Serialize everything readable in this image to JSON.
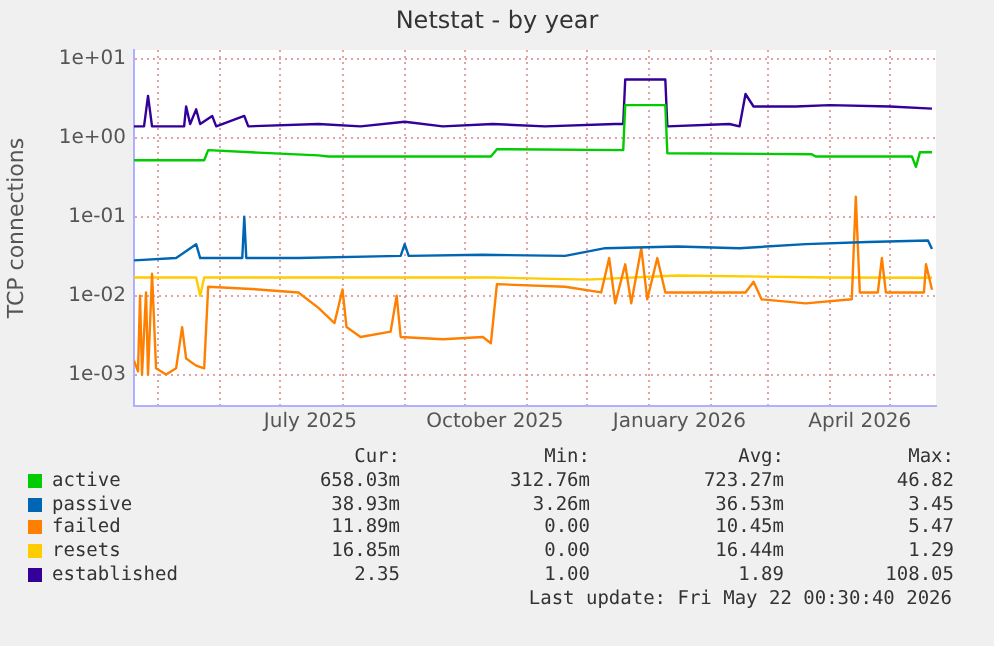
{
  "chart_data": {
    "type": "line",
    "title": "Netstat - by year",
    "ylabel": "TCP connections",
    "log": "y",
    "grid": true,
    "legend": "bottom",
    "marker": "none",
    "xlim": [
      "2025-04-19",
      "2026-05-24"
    ],
    "xticks": [
      {
        "value": "2025-05-01",
        "label": null
      },
      {
        "value": "2025-06-01",
        "label": null
      },
      {
        "value": "2025-07-01",
        "label": null
      },
      {
        "value": "2025-07-16",
        "label": "July 2025"
      },
      {
        "value": "2025-08-01",
        "label": null
      },
      {
        "value": "2025-09-01",
        "label": null
      },
      {
        "value": "2025-10-01",
        "label": null
      },
      {
        "value": "2025-10-16",
        "label": "October 2025"
      },
      {
        "value": "2025-11-01",
        "label": null
      },
      {
        "value": "2025-12-01",
        "label": null
      },
      {
        "value": "2026-01-01",
        "label": null
      },
      {
        "value": "2026-01-16",
        "label": "January 2026"
      },
      {
        "value": "2026-02-01",
        "label": null
      },
      {
        "value": "2026-03-01",
        "label": null
      },
      {
        "value": "2026-04-01",
        "label": null
      },
      {
        "value": "2026-04-16",
        "label": "April 2026"
      },
      {
        "value": "2026-05-01",
        "label": null
      }
    ],
    "ylim": [
      0.0004,
      13
    ],
    "yticks": [
      {
        "value": 0.001,
        "label": "1e-03"
      },
      {
        "value": 0.01,
        "label": "1e-02"
      },
      {
        "value": 0.1,
        "label": "1e-01"
      },
      {
        "value": 1,
        "label": "1e+00"
      },
      {
        "value": 10,
        "label": "1e+01"
      }
    ],
    "series": [
      {
        "name": "active",
        "color": "#00cc00",
        "x": [
          "2025-04-19",
          "2025-05-24",
          "2025-05-26",
          "2025-06-20",
          "2025-07-20",
          "2025-07-25",
          "2025-10-14",
          "2025-10-17",
          "2025-12-19",
          "2025-12-20",
          "2026-01-09",
          "2026-01-10",
          "2026-03-23",
          "2026-03-25",
          "2026-05-12",
          "2026-05-14",
          "2026-05-16",
          "2026-05-22"
        ],
        "values": [
          0.52,
          0.52,
          0.7,
          0.65,
          0.6,
          0.58,
          0.58,
          0.72,
          0.7,
          2.6,
          2.6,
          0.64,
          0.62,
          0.58,
          0.58,
          0.43,
          0.66,
          0.658
        ]
      },
      {
        "name": "passive",
        "color": "#0066b3",
        "x": [
          "2025-04-19",
          "2025-05-10",
          "2025-05-20",
          "2025-05-22",
          "2025-06-12",
          "2025-06-13",
          "2025-06-14",
          "2025-07-10",
          "2025-08-30",
          "2025-09-01",
          "2025-09-03",
          "2025-10-10",
          "2025-11-20",
          "2025-12-10",
          "2026-01-15",
          "2026-02-15",
          "2026-03-20",
          "2026-04-20",
          "2026-05-20",
          "2026-05-22"
        ],
        "values": [
          0.028,
          0.03,
          0.045,
          0.03,
          0.03,
          0.1,
          0.03,
          0.03,
          0.032,
          0.045,
          0.032,
          0.033,
          0.032,
          0.04,
          0.042,
          0.04,
          0.045,
          0.048,
          0.05,
          0.039
        ]
      },
      {
        "name": "failed",
        "color": "#ff8000",
        "x": [
          "2025-04-19",
          "2025-04-21",
          "2025-04-22",
          "2025-04-23",
          "2025-04-25",
          "2025-04-26",
          "2025-04-28",
          "2025-04-30",
          "2025-05-05",
          "2025-05-10",
          "2025-05-13",
          "2025-05-15",
          "2025-05-20",
          "2025-05-24",
          "2025-05-26",
          "2025-06-20",
          "2025-07-10",
          "2025-07-20",
          "2025-07-28",
          "2025-08-01",
          "2025-08-03",
          "2025-08-10",
          "2025-08-25",
          "2025-08-28",
          "2025-08-30",
          "2025-09-20",
          "2025-10-10",
          "2025-10-14",
          "2025-10-17",
          "2025-11-20",
          "2025-12-08",
          "2025-12-12",
          "2025-12-15",
          "2025-12-20",
          "2025-12-23",
          "2025-12-28",
          "2025-12-31",
          "2026-01-05",
          "2026-01-09",
          "2026-02-10",
          "2026-02-18",
          "2026-02-22",
          "2026-02-26",
          "2026-03-20",
          "2026-04-12",
          "2026-04-14",
          "2026-04-16",
          "2026-04-25",
          "2026-04-27",
          "2026-04-29",
          "2026-05-18",
          "2026-05-19",
          "2026-05-22"
        ],
        "values": [
          0.0015,
          0.0011,
          0.01,
          0.001,
          0.011,
          0.001,
          0.019,
          0.0012,
          0.001,
          0.0012,
          0.004,
          0.0016,
          0.0013,
          0.0012,
          0.013,
          0.012,
          0.011,
          0.007,
          0.0045,
          0.012,
          0.004,
          0.003,
          0.0035,
          0.01,
          0.003,
          0.0028,
          0.003,
          0.0025,
          0.014,
          0.013,
          0.011,
          0.03,
          0.008,
          0.025,
          0.008,
          0.04,
          0.009,
          0.03,
          0.011,
          0.011,
          0.011,
          0.015,
          0.009,
          0.008,
          0.009,
          0.18,
          0.011,
          0.011,
          0.03,
          0.011,
          0.011,
          0.025,
          0.0119
        ]
      },
      {
        "name": "resets",
        "color": "#ffcc00",
        "x": [
          "2025-04-19",
          "2025-05-20",
          "2025-05-22",
          "2025-05-24",
          "2025-10-15",
          "2025-12-01",
          "2026-01-15",
          "2026-04-01",
          "2026-05-22"
        ],
        "values": [
          0.017,
          0.017,
          0.01,
          0.017,
          0.017,
          0.016,
          0.018,
          0.017,
          0.01685
        ]
      },
      {
        "name": "established",
        "color": "#330099",
        "x": [
          "2025-04-19",
          "2025-04-24",
          "2025-04-26",
          "2025-04-28",
          "2025-05-14",
          "2025-05-15",
          "2025-05-17",
          "2025-05-20",
          "2025-05-22",
          "2025-05-28",
          "2025-05-30",
          "2025-06-13",
          "2025-06-15",
          "2025-07-20",
          "2025-08-10",
          "2025-09-01",
          "2025-09-20",
          "2025-10-15",
          "2025-11-10",
          "2025-12-15",
          "2025-12-19",
          "2025-12-20",
          "2026-01-09",
          "2026-01-10",
          "2026-02-10",
          "2026-02-15",
          "2026-02-18",
          "2026-02-22",
          "2026-03-15",
          "2026-04-01",
          "2026-05-01",
          "2026-05-22"
        ],
        "values": [
          1.4,
          1.4,
          3.4,
          1.4,
          1.4,
          2.5,
          1.5,
          2.3,
          1.5,
          1.9,
          1.4,
          1.9,
          1.4,
          1.5,
          1.4,
          1.6,
          1.4,
          1.5,
          1.4,
          1.5,
          1.5,
          5.5,
          5.5,
          1.4,
          1.5,
          1.4,
          3.6,
          2.5,
          2.5,
          2.6,
          2.5,
          2.35
        ]
      }
    ],
    "annotations": [
      "Cur:",
      "Min:",
      "Avg:",
      "Max:",
      "658.03m",
      "312.76m",
      "723.27m",
      "46.82",
      "38.93m",
      "3.26m",
      "36.53m",
      "3.45",
      "11.89m",
      "0.00",
      "10.45m",
      "5.47",
      "16.85m",
      "0.00",
      "16.44m",
      "1.29",
      "2.35",
      "1.00",
      "1.89",
      "108.05",
      "Last update: Fri May 22 00:30:40 2026"
    ]
  }
}
